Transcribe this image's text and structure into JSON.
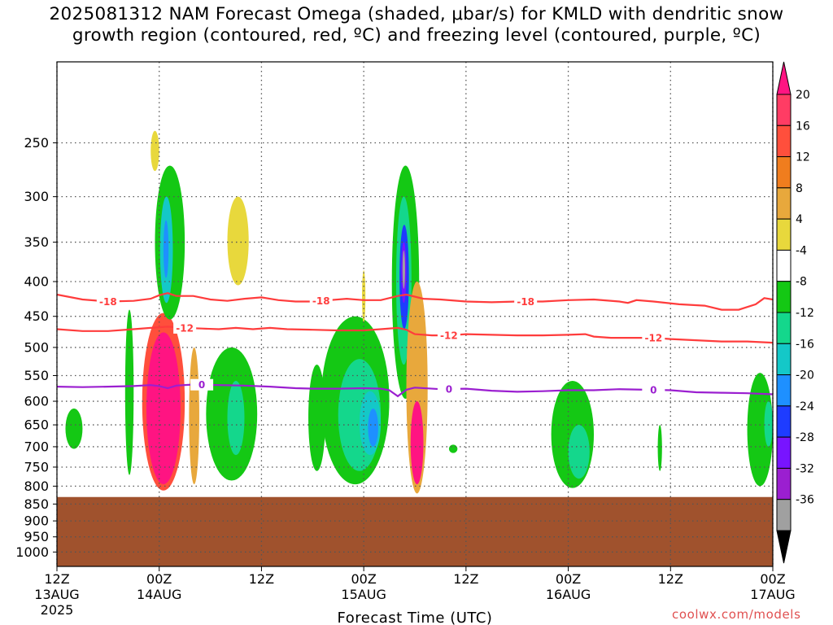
{
  "title": {
    "line1": "2025081312 NAM Forecast Omega (shaded, μbar/s) for KMLD with dendritic snow",
    "line2": "growth region (contoured, red, ºC) and freezing level (contoured, purple, ºC)"
  },
  "credit": "coolwx.com/models",
  "colors": {
    "ground": "#a0522d",
    "red_contour": "#ff3c3c",
    "purple_contour": "#9b1fd0",
    "grid": "#555555"
  },
  "chart_data": {
    "type": "heatmap",
    "title": "2025081312 NAM Forecast Omega (shaded, μbar/s) for KMLD with dendritic snow growth region (contoured, red, ºC) and freezing level (contoured, purple, ºC)",
    "xlabel": "Forecast Time (UTC)",
    "ylabel": "",
    "x_ticks": [
      {
        "hours": 0,
        "label": "12Z",
        "sub1": "13AUG",
        "sub2": "2025"
      },
      {
        "hours": 12,
        "label": "00Z",
        "sub1": "14AUG",
        "sub2": ""
      },
      {
        "hours": 24,
        "label": "12Z",
        "sub1": "",
        "sub2": ""
      },
      {
        "hours": 36,
        "label": "00Z",
        "sub1": "15AUG",
        "sub2": ""
      },
      {
        "hours": 48,
        "label": "12Z",
        "sub1": "",
        "sub2": ""
      },
      {
        "hours": 60,
        "label": "00Z",
        "sub1": "16AUG",
        "sub2": ""
      },
      {
        "hours": 72,
        "label": "12Z",
        "sub1": "",
        "sub2": ""
      },
      {
        "hours": 84,
        "label": "00Z",
        "sub1": "17AUG",
        "sub2": ""
      }
    ],
    "x_range_hours": [
      0,
      84
    ],
    "y_axis": "pressure (hPa), log scale, inverted",
    "y_range": [
      1050,
      190
    ],
    "y_ticks": [
      250,
      300,
      350,
      400,
      450,
      500,
      550,
      600,
      650,
      700,
      750,
      800,
      850,
      900,
      950,
      1000
    ],
    "grid": true,
    "ground_top_hpa": 830,
    "colorbar": {
      "labels": [
        "20",
        "16",
        "12",
        "8",
        "4",
        "-4",
        "-8",
        "-12",
        "-16",
        "-20",
        "-24",
        "-28",
        "-32",
        "-36"
      ],
      "colors": [
        "#ff3c64",
        "#ff4f3c",
        "#f07d1e",
        "#e8a83c",
        "#e8d83c",
        "#ffffff",
        "#14c814",
        "#14d78c",
        "#14c8c8",
        "#1e90ff",
        "#1e3cff",
        "#7814ff",
        "#9b1fd0",
        "#a0a0a0"
      ],
      "top_arrow_color": "#ff1482",
      "bottom_arrow_color": "#000000"
    },
    "contours": [
      {
        "name": "-18",
        "color": "#ff3c3c",
        "label": "-18",
        "points": [
          [
            0,
            418
          ],
          [
            3,
            425
          ],
          [
            6,
            428
          ],
          [
            9,
            427
          ],
          [
            11,
            424
          ],
          [
            12,
            419
          ],
          [
            13,
            416
          ],
          [
            14,
            420
          ],
          [
            16,
            420
          ],
          [
            18,
            425
          ],
          [
            20,
            427
          ],
          [
            22,
            424
          ],
          [
            24,
            422
          ],
          [
            26,
            426
          ],
          [
            28,
            428
          ],
          [
            30,
            428
          ],
          [
            32,
            426
          ],
          [
            34,
            424
          ],
          [
            36,
            426
          ],
          [
            38,
            426
          ],
          [
            40,
            420
          ],
          [
            41,
            418
          ],
          [
            43,
            424
          ],
          [
            45,
            425
          ],
          [
            48,
            428
          ],
          [
            51,
            429
          ],
          [
            54,
            428
          ],
          [
            57,
            428
          ],
          [
            60,
            426
          ],
          [
            63,
            425
          ],
          [
            66,
            428
          ],
          [
            67,
            430
          ],
          [
            68,
            426
          ],
          [
            70,
            428
          ],
          [
            73,
            432
          ],
          [
            76,
            434
          ],
          [
            78,
            440
          ],
          [
            80,
            440
          ],
          [
            82,
            432
          ],
          [
            83,
            423
          ],
          [
            84,
            425
          ]
        ],
        "label_positions": [
          6,
          31,
          55
        ]
      },
      {
        "name": "-12",
        "color": "#ff3c3c",
        "label": "-12",
        "points": [
          [
            0,
            470
          ],
          [
            3,
            473
          ],
          [
            6,
            473
          ],
          [
            9,
            470
          ],
          [
            11,
            468
          ],
          [
            13,
            466
          ],
          [
            15,
            468
          ],
          [
            17,
            469
          ],
          [
            19,
            470
          ],
          [
            21,
            468
          ],
          [
            23,
            470
          ],
          [
            25,
            468
          ],
          [
            27,
            470
          ],
          [
            30,
            471
          ],
          [
            33,
            472
          ],
          [
            36,
            472
          ],
          [
            38,
            470
          ],
          [
            40,
            468
          ],
          [
            41,
            471
          ],
          [
            42,
            478
          ],
          [
            44,
            480
          ],
          [
            46,
            480
          ],
          [
            48,
            478
          ],
          [
            51,
            479
          ],
          [
            54,
            480
          ],
          [
            57,
            480
          ],
          [
            60,
            479
          ],
          [
            62,
            478
          ],
          [
            63,
            482
          ],
          [
            65,
            484
          ],
          [
            68,
            484
          ],
          [
            70,
            484
          ],
          [
            72,
            486
          ],
          [
            75,
            488
          ],
          [
            78,
            490
          ],
          [
            81,
            490
          ],
          [
            84,
            492
          ]
        ],
        "label_positions": [
          15,
          46,
          70
        ]
      },
      {
        "name": "0",
        "color": "#9b1fd0",
        "label": "0",
        "points": [
          [
            0,
            571
          ],
          [
            3,
            572
          ],
          [
            6,
            571
          ],
          [
            9,
            570
          ],
          [
            11,
            568
          ],
          [
            12,
            570
          ],
          [
            13,
            574
          ],
          [
            14,
            569
          ],
          [
            16,
            567
          ],
          [
            19,
            568
          ],
          [
            22,
            569
          ],
          [
            25,
            571
          ],
          [
            28,
            574
          ],
          [
            30,
            575
          ],
          [
            33,
            575
          ],
          [
            36,
            574
          ],
          [
            38,
            575
          ],
          [
            39,
            578
          ],
          [
            40,
            590
          ],
          [
            41,
            577
          ],
          [
            42,
            573
          ],
          [
            45,
            576
          ],
          [
            48,
            575
          ],
          [
            51,
            579
          ],
          [
            54,
            581
          ],
          [
            57,
            580
          ],
          [
            60,
            578
          ],
          [
            63,
            578
          ],
          [
            66,
            576
          ],
          [
            69,
            577
          ],
          [
            72,
            578
          ],
          [
            75,
            582
          ],
          [
            78,
            583
          ],
          [
            81,
            584
          ],
          [
            84,
            586
          ]
        ],
        "label_positions": [
          17,
          46,
          70
        ]
      }
    ],
    "omega_features": [
      {
        "hours": [
          1.0,
          3.0
        ],
        "p_top": 615,
        "p_bot": 705,
        "level": "-8"
      },
      {
        "hours": [
          8.0,
          9.0
        ],
        "p_top": 440,
        "p_bot": 770,
        "level": "-8"
      },
      {
        "hours": [
          10.0,
          15.0
        ],
        "p_top": 445,
        "p_bot": 812,
        "level": "16"
      },
      {
        "hours": [
          10.5,
          14.5
        ],
        "p_top": 475,
        "p_bot": 795,
        "level": "20"
      },
      {
        "hours": [
          15.5,
          16.7
        ],
        "p_top": 500,
        "p_bot": 795,
        "level": "8"
      },
      {
        "hours": [
          11.0,
          12.0
        ],
        "p_top": 240,
        "p_bot": 275,
        "level": "4"
      },
      {
        "hours": [
          11.5,
          15.0
        ],
        "p_top": 270,
        "p_bot": 455,
        "level": "-8"
      },
      {
        "hours": [
          12.1,
          13.6
        ],
        "p_top": 300,
        "p_bot": 430,
        "level": "-16"
      },
      {
        "hours": [
          12.5,
          13.1
        ],
        "p_top": 325,
        "p_bot": 395,
        "level": "-20"
      },
      {
        "hours": [
          17.5,
          23.5
        ],
        "p_top": 500,
        "p_bot": 785,
        "level": "-8"
      },
      {
        "hours": [
          20.0,
          22.0
        ],
        "p_top": 560,
        "p_bot": 720,
        "level": "-12"
      },
      {
        "hours": [
          20.0,
          22.5
        ],
        "p_top": 300,
        "p_bot": 405,
        "level": "4"
      },
      {
        "hours": [
          29.5,
          31.5
        ],
        "p_top": 530,
        "p_bot": 760,
        "level": "-8"
      },
      {
        "hours": [
          31.0,
          39.0
        ],
        "p_top": 450,
        "p_bot": 795,
        "level": "-8"
      },
      {
        "hours": [
          33.0,
          38.0
        ],
        "p_top": 520,
        "p_bot": 760,
        "level": "-12"
      },
      {
        "hours": [
          35.5,
          38.0
        ],
        "p_top": 580,
        "p_bot": 720,
        "level": "-16"
      },
      {
        "hours": [
          36.5,
          37.7
        ],
        "p_top": 615,
        "p_bot": 700,
        "level": "-20"
      },
      {
        "hours": [
          35.8,
          36.2
        ],
        "p_top": 385,
        "p_bot": 460,
        "level": "4"
      },
      {
        "hours": [
          39.3,
          42.5
        ],
        "p_top": 270,
        "p_bot": 595,
        "level": "-8"
      },
      {
        "hours": [
          39.8,
          41.6
        ],
        "p_top": 300,
        "p_bot": 530,
        "level": "-12"
      },
      {
        "hours": [
          40.2,
          41.3
        ],
        "p_top": 330,
        "p_bot": 470,
        "level": "-24"
      },
      {
        "hours": [
          40.4,
          41.0
        ],
        "p_top": 350,
        "p_bot": 430,
        "level": "-28"
      },
      {
        "hours": [
          40.55,
          40.85
        ],
        "p_top": 360,
        "p_bot": 410,
        "level": "-36"
      },
      {
        "hours": [
          41.0,
          43.5
        ],
        "p_top": 400,
        "p_bot": 820,
        "level": "8"
      },
      {
        "hours": [
          41.5,
          43.0
        ],
        "p_top": 600,
        "p_bot": 795,
        "level": "20"
      },
      {
        "hours": [
          46.0,
          47.0
        ],
        "p_top": 695,
        "p_bot": 715,
        "level": "-8"
      },
      {
        "hours": [
          58.0,
          63.0
        ],
        "p_top": 560,
        "p_bot": 805,
        "level": "-8"
      },
      {
        "hours": [
          60.0,
          62.5
        ],
        "p_top": 650,
        "p_bot": 780,
        "level": "-12"
      },
      {
        "hours": [
          70.5,
          71.0
        ],
        "p_top": 650,
        "p_bot": 760,
        "level": "-8"
      },
      {
        "hours": [
          81.0,
          84.0
        ],
        "p_top": 545,
        "p_bot": 800,
        "level": "-8"
      },
      {
        "hours": [
          83.0,
          84.0
        ],
        "p_top": 600,
        "p_bot": 700,
        "level": "-12"
      }
    ]
  }
}
